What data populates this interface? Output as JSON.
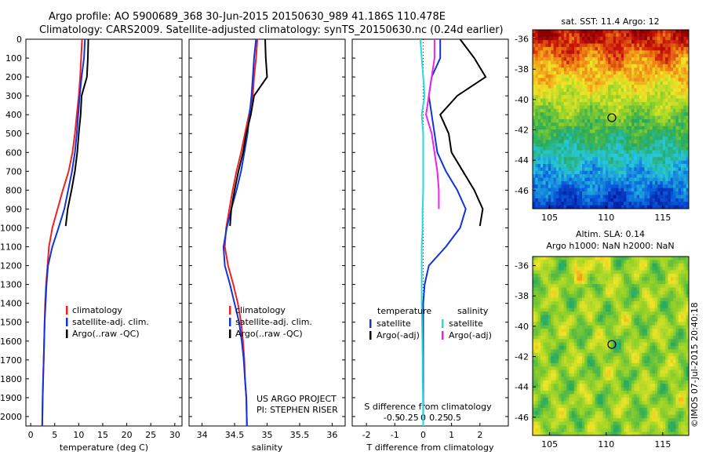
{
  "header": {
    "line1": "Argo profile: AO 5900689_368 30-Jun-2015 20150630_989 41.186S 110.478E",
    "line2": "Climatology: CARS2009. Satellite-adjusted climatology: synTS_20150630.nc (0.24d earlier)"
  },
  "colors": {
    "climatology": "#ee2222",
    "satellite": "#1133dd",
    "argo": "#000000",
    "satellite_s": "#22dddd",
    "argo_s": "#ee22ee"
  },
  "chart_data": [
    {
      "type": "line",
      "id": "temperature",
      "xlabel": "temperature (deg C)",
      "ylabel": "",
      "xlim": [
        -1,
        31.5
      ],
      "ylim": [
        2050,
        0
      ],
      "xticks": [
        "0",
        "5",
        "10",
        "15",
        "20",
        "25",
        "30"
      ],
      "xtick_values": [
        0,
        5,
        10,
        15,
        20,
        25,
        30
      ],
      "yticks": [
        "0",
        "100",
        "200",
        "300",
        "400",
        "500",
        "600",
        "700",
        "800",
        "900",
        "1000",
        "1100",
        "1200",
        "1300",
        "1400",
        "1500",
        "1600",
        "1700",
        "1800",
        "1900",
        "2000"
      ],
      "ytick_values": [
        0,
        100,
        200,
        300,
        400,
        500,
        600,
        700,
        800,
        900,
        1000,
        1100,
        1200,
        1300,
        1400,
        1500,
        1600,
        1700,
        1800,
        1900,
        2000
      ],
      "legend": [
        "climatology",
        "satellite-adj. clim.",
        "Argo(..raw -QC)"
      ],
      "series": [
        {
          "name": "climatology",
          "color_key": "climatology",
          "x": [
            10.7,
            10.5,
            10.3,
            10.0,
            9.6,
            9.2,
            8.7,
            7.9,
            6.7,
            5.6,
            4.5,
            3.8,
            3.5,
            3.2,
            3.0,
            2.9,
            2.8,
            2.7,
            2.6,
            2.5,
            2.4
          ],
          "y": [
            0,
            100,
            200,
            300,
            400,
            500,
            600,
            700,
            800,
            900,
            1000,
            1100,
            1200,
            1300,
            1400,
            1500,
            1600,
            1700,
            1800,
            1900,
            2050
          ]
        },
        {
          "name": "satellite-adj. clim.",
          "color_key": "satellite",
          "x": [
            11.3,
            11.1,
            10.6,
            10.2,
            9.9,
            9.6,
            9.2,
            8.6,
            7.8,
            7.0,
            5.8,
            4.5,
            3.6,
            3.3,
            3.1,
            2.9,
            2.8,
            2.7,
            2.6,
            2.5,
            2.4
          ],
          "y": [
            0,
            100,
            200,
            300,
            400,
            500,
            600,
            700,
            800,
            900,
            1000,
            1100,
            1200,
            1300,
            1400,
            1500,
            1600,
            1700,
            1800,
            1900,
            2050
          ]
        },
        {
          "name": "Argo(..raw -QC)",
          "color_key": "argo",
          "x": [
            12.0,
            11.9,
            11.7,
            10.6,
            10.4,
            10.0,
            9.7,
            9.2,
            8.5,
            7.7,
            7.3
          ],
          "y": [
            0,
            100,
            200,
            300,
            400,
            500,
            600,
            700,
            800,
            900,
            990
          ]
        }
      ]
    },
    {
      "type": "line",
      "id": "salinity",
      "xlabel": "salinity",
      "ylabel": "",
      "xlim": [
        33.8,
        36.2
      ],
      "ylim": [
        2050,
        0
      ],
      "xticks": [
        "34",
        "34.5",
        "35",
        "35.5",
        "36"
      ],
      "xtick_values": [
        34,
        34.5,
        35,
        35.5,
        36
      ],
      "legend": [
        "climatology",
        "satellite-adj. clim.",
        "Argo(..raw -QC)"
      ],
      "annotation": [
        "US ARGO PROJECT",
        "PI: STEPHEN RISER"
      ],
      "series": [
        {
          "name": "climatology",
          "color_key": "climatology",
          "x": [
            34.85,
            34.83,
            34.8,
            34.78,
            34.72,
            34.66,
            34.6,
            34.53,
            34.47,
            34.42,
            34.37,
            34.35,
            34.4,
            34.48,
            34.55,
            34.6,
            34.63,
            34.65,
            34.66,
            34.68,
            34.69
          ],
          "y": [
            0,
            100,
            200,
            300,
            400,
            500,
            600,
            700,
            800,
            900,
            1000,
            1100,
            1200,
            1300,
            1400,
            1500,
            1600,
            1700,
            1800,
            1900,
            2050
          ]
        },
        {
          "name": "satellite-adj. clim.",
          "color_key": "satellite",
          "x": [
            34.83,
            34.8,
            34.78,
            34.76,
            34.73,
            34.7,
            34.65,
            34.6,
            34.53,
            34.45,
            34.38,
            34.33,
            34.35,
            34.43,
            34.5,
            34.57,
            34.61,
            34.64,
            34.66,
            34.68,
            34.69
          ],
          "y": [
            0,
            100,
            200,
            300,
            400,
            500,
            600,
            700,
            800,
            900,
            1000,
            1100,
            1200,
            1300,
            1400,
            1500,
            1600,
            1700,
            1800,
            1900,
            2050
          ]
        },
        {
          "name": "Argo(..raw -QC)",
          "color_key": "argo",
          "x": [
            34.97,
            34.98,
            35.0,
            34.8,
            34.75,
            34.68,
            34.63,
            34.56,
            34.5,
            34.45,
            34.43
          ],
          "y": [
            0,
            100,
            200,
            300,
            400,
            500,
            600,
            700,
            800,
            900,
            990
          ]
        }
      ]
    },
    {
      "type": "line",
      "id": "difference",
      "xlabel": "T difference from climatology",
      "xlabel_top": "S difference from climatology",
      "xlim": [
        -2.5,
        3.0
      ],
      "ylim": [
        2050,
        0
      ],
      "xticks": [
        "-2",
        "-1",
        "0",
        "1",
        "2"
      ],
      "xtick_values": [
        -2,
        -1,
        0,
        1,
        2
      ],
      "xticks_top": [
        "-0.5",
        "-0.25",
        "0",
        "0.25",
        "0.5"
      ],
      "xtick_top_values": [
        -0.5,
        -0.25,
        0,
        0.25,
        0.5
      ],
      "legend_groups": [
        {
          "title": "temperature",
          "items": [
            {
              "label": "satellite",
              "color_key": "satellite"
            },
            {
              "label": "Argo(-adj)",
              "color_key": "argo"
            }
          ]
        },
        {
          "title": "salinity",
          "items": [
            {
              "label": "satellite",
              "color_key": "satellite_s"
            },
            {
              "label": "Argo(-adj)",
              "color_key": "argo_s"
            }
          ]
        }
      ],
      "series": [
        {
          "name": "temperature satellite",
          "color_key": "satellite",
          "x": [
            0.6,
            0.6,
            0.3,
            0.2,
            0.3,
            0.4,
            0.5,
            0.8,
            1.2,
            1.5,
            1.3,
            0.8,
            0.2,
            0.05,
            0,
            0,
            0,
            0,
            0,
            0,
            0
          ],
          "y": [
            0,
            100,
            200,
            300,
            400,
            500,
            600,
            700,
            800,
            900,
            1000,
            1100,
            1200,
            1300,
            1400,
            1500,
            1600,
            1700,
            1800,
            1900,
            2050
          ]
        },
        {
          "name": "temperature Argo(-adj)",
          "color_key": "argo",
          "x": [
            1.3,
            1.8,
            2.2,
            1.2,
            0.6,
            0.9,
            1.0,
            1.4,
            1.8,
            2.1,
            2.0
          ],
          "y": [
            0,
            100,
            200,
            300,
            400,
            500,
            600,
            700,
            800,
            900,
            990
          ]
        },
        {
          "name": "salinity satellite",
          "color_key": "satellite_s",
          "x": [
            -0.1,
            -0.05,
            0.0,
            0.05,
            -0.05,
            0.0,
            0.0,
            0.0,
            0.0,
            -0.02,
            -0.02,
            -0.05,
            -0.05,
            -0.05,
            -0.05,
            -0.04,
            -0.03,
            -0.02,
            -0.02,
            -0.01,
            0.0
          ],
          "y": [
            0,
            100,
            200,
            300,
            400,
            500,
            600,
            700,
            800,
            900,
            1000,
            1100,
            1200,
            1300,
            1400,
            1500,
            1600,
            1700,
            1800,
            1900,
            2050
          ]
        },
        {
          "name": "salinity Argo(-adj)",
          "color_key": "argo_s",
          "x": [
            0.4,
            0.4,
            0.3,
            0.2,
            0.1,
            0.3,
            0.4,
            0.5,
            0.55,
            0.55
          ],
          "y": [
            0,
            100,
            200,
            300,
            400,
            500,
            600,
            700,
            800,
            900
          ]
        }
      ]
    },
    {
      "type": "heatmap",
      "id": "sst_map",
      "title": "sat. SST: 11.4 Argo: 12",
      "xticks": [
        "105",
        "110",
        "115"
      ],
      "xtick_values": [
        105,
        110,
        115
      ],
      "yticks": [
        "-36",
        "-38",
        "-40",
        "-42",
        "-44",
        "-46"
      ],
      "ytick_values": [
        -36,
        -38,
        -40,
        -42,
        -44,
        -46
      ],
      "xlim": [
        103.5,
        117.3
      ],
      "ylim": [
        -47.2,
        -35.4
      ],
      "marker": [
        110.5,
        -41.2
      ]
    },
    {
      "type": "heatmap",
      "id": "sla_map",
      "title": "Altim. SLA: 0.14",
      "subtitle": "Argo h1000: NaN h2000: NaN",
      "xticks": [
        "105",
        "110",
        "115"
      ],
      "xtick_values": [
        105,
        110,
        115
      ],
      "yticks": [
        "-36",
        "-38",
        "-40",
        "-42",
        "-44",
        "-46"
      ],
      "ytick_values": [
        -36,
        -38,
        -40,
        -42,
        -44,
        -46
      ],
      "xlim": [
        103.5,
        117.3
      ],
      "ylim": [
        -47.2,
        -35.4
      ],
      "marker": [
        110.5,
        -41.2
      ]
    }
  ],
  "footer": {
    "credit": "©IMOS 07-Jul-2015 20:40:18"
  }
}
